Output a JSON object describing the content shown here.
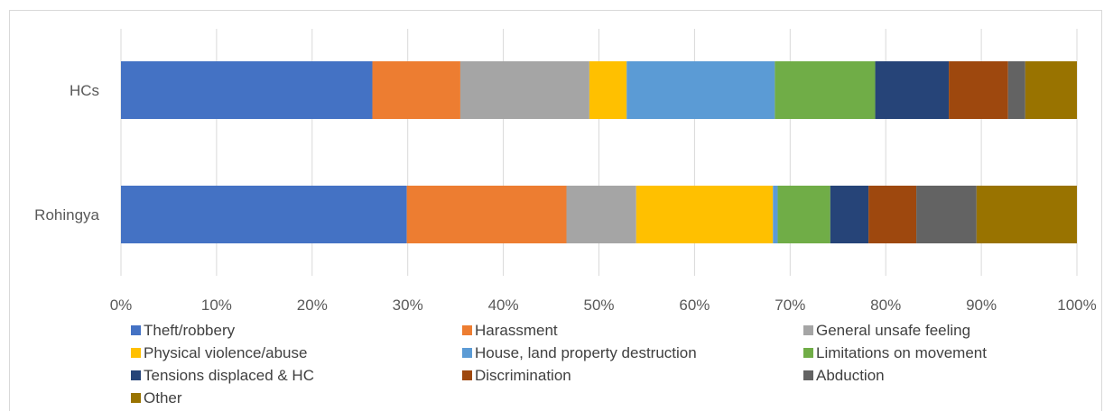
{
  "chart_data": {
    "type": "bar",
    "orientation": "horizontal",
    "stacked": "percent",
    "categories": [
      "HCs",
      "Rohingya"
    ],
    "series": [
      {
        "name": "Theft/robbery",
        "color": "#4472C4",
        "values": [
          26.3,
          29.9
        ]
      },
      {
        "name": "Harassment",
        "color": "#ED7D31",
        "values": [
          9.2,
          16.7
        ]
      },
      {
        "name": "General unsafe feeling",
        "color": "#A5A5A5",
        "values": [
          13.5,
          7.3
        ]
      },
      {
        "name": "Physical violence/abuse",
        "color": "#FFC000",
        "values": [
          3.9,
          14.3
        ]
      },
      {
        "name": "House, land property destruction",
        "color": "#5B9BD5",
        "values": [
          15.5,
          0.5
        ]
      },
      {
        "name": "Limitations on movement",
        "color": "#70AD47",
        "values": [
          10.5,
          5.5
        ]
      },
      {
        "name": "Tensions displaced & HC",
        "color": "#264478",
        "values": [
          7.7,
          4.0
        ]
      },
      {
        "name": "Discrimination",
        "color": "#9E480E",
        "values": [
          6.2,
          5.0
        ]
      },
      {
        "name": "Abduction",
        "color": "#636363",
        "values": [
          1.8,
          6.3
        ]
      },
      {
        "name": "Other",
        "color": "#997300",
        "values": [
          5.4,
          10.5
        ]
      }
    ],
    "x_ticks": [
      "0%",
      "10%",
      "20%",
      "30%",
      "40%",
      "50%",
      "60%",
      "70%",
      "80%",
      "90%",
      "100%"
    ],
    "xlim": [
      0,
      100
    ],
    "grid": true,
    "legend_position": "bottom"
  }
}
